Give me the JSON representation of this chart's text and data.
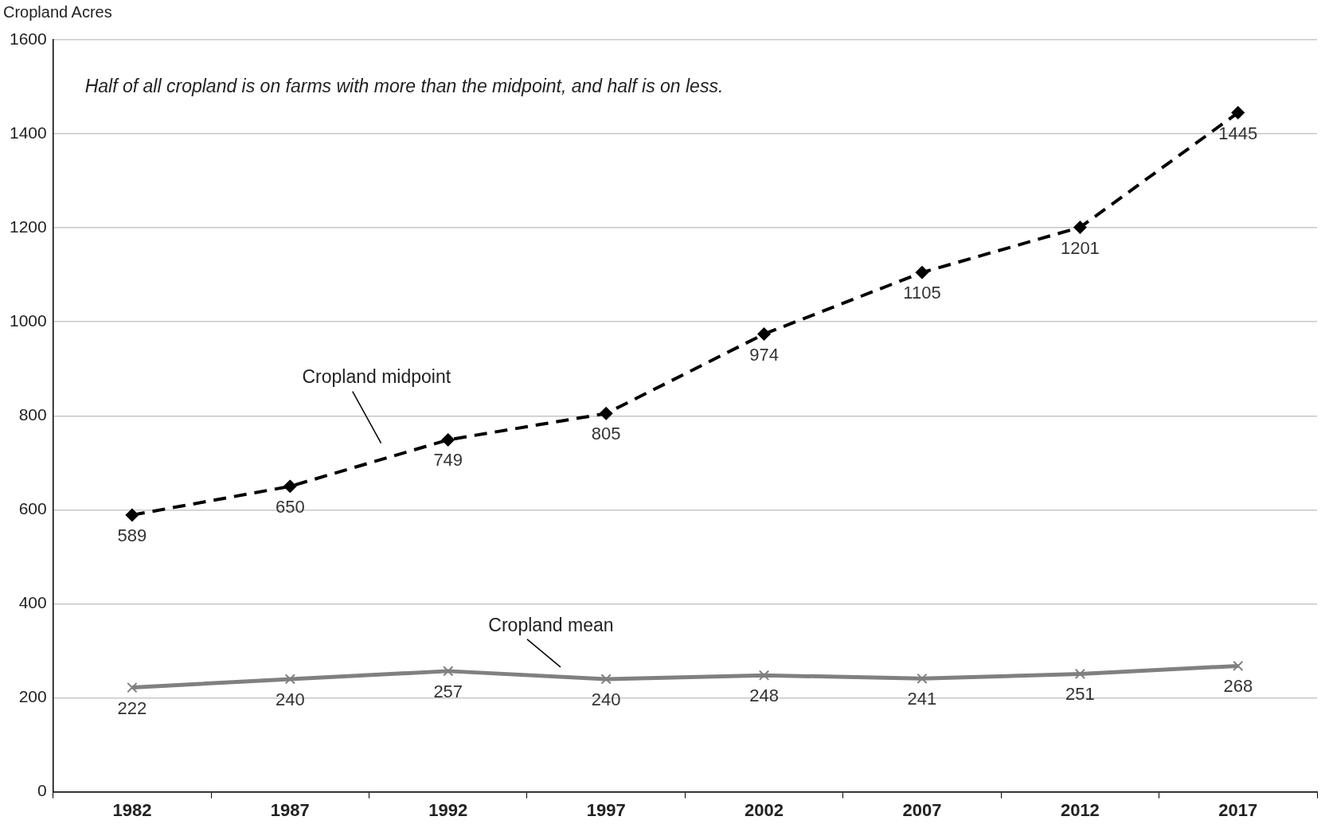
{
  "chart_data": {
    "type": "line",
    "ylabel": "Cropland Acres",
    "annotations": [
      "Half of all cropland is on farms with more than the midpoint, and half is on less."
    ],
    "categories": [
      "1982",
      "1987",
      "1992",
      "1997",
      "2002",
      "2007",
      "2012",
      "2017"
    ],
    "series": [
      {
        "name": "Cropland midpoint",
        "color": "#000000",
        "values": [
          589,
          650,
          749,
          805,
          974,
          1105,
          1201,
          1445
        ],
        "line_style": "dashed",
        "marker": "diamond"
      },
      {
        "name": "Cropland mean",
        "color": "#808080",
        "values": [
          222,
          240,
          257,
          240,
          248,
          241,
          251,
          268
        ],
        "line_style": "solid",
        "marker": "cross"
      }
    ],
    "ylim": [
      0,
      1600
    ],
    "yticks": [
      0,
      200,
      400,
      600,
      800,
      1000,
      1200,
      1400,
      1600
    ],
    "grid": "y",
    "data_labels": true,
    "legend": false
  }
}
